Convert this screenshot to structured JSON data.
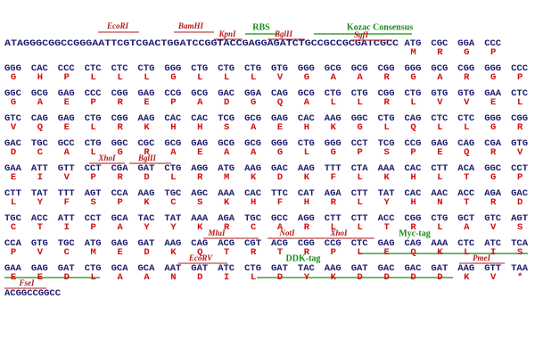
{
  "sequence_map": {
    "intro": {
      "sequence": "ATAGGGCGGCCGGGAATTCGTCGACTGGATCCGGTACCGAGGAGATCTGCCGCCGCGATCGCC",
      "codons": [
        "ATG",
        "CGC",
        "GGA",
        "CCC"
      ],
      "amino_acids": [
        "M",
        "R",
        "G",
        "P"
      ]
    },
    "rows": [
      {
        "codons": [
          "GGG",
          "CAC",
          "CCC",
          "CTC",
          "CTC",
          "CTG",
          "GGG",
          "CTG",
          "CTG",
          "CTG",
          "GTG",
          "GGG",
          "GCG",
          "GCG",
          "CGG",
          "GGG",
          "GCG",
          "CGG",
          "GGG",
          "CCC"
        ],
        "amino_acids": [
          "G",
          "H",
          "P",
          "L",
          "L",
          "L",
          "G",
          "L",
          "L",
          "L",
          "V",
          "G",
          "A",
          "A",
          "R",
          "G",
          "A",
          "R",
          "G",
          "P"
        ]
      },
      {
        "codons": [
          "GGC",
          "GCG",
          "GAG",
          "CCC",
          "CGG",
          "GAG",
          "CCG",
          "GCG",
          "GAC",
          "GGA",
          "CAG",
          "GCG",
          "CTG",
          "CTG",
          "CGG",
          "CTG",
          "GTG",
          "GTG",
          "GAA",
          "CTC"
        ],
        "amino_acids": [
          "G",
          "A",
          "E",
          "P",
          "R",
          "E",
          "P",
          "A",
          "D",
          "G",
          "Q",
          "A",
          "L",
          "L",
          "R",
          "L",
          "V",
          "V",
          "E",
          "L"
        ]
      },
      {
        "codons": [
          "GTC",
          "CAG",
          "GAG",
          "CTG",
          "CGG",
          "AAG",
          "CAC",
          "CAC",
          "TCG",
          "GCG",
          "GAG",
          "CAC",
          "AAG",
          "GGC",
          "CTG",
          "CAG",
          "CTC",
          "CTC",
          "GGG",
          "CGG"
        ],
        "amino_acids": [
          "V",
          "Q",
          "E",
          "L",
          "R",
          "K",
          "H",
          "H",
          "S",
          "A",
          "E",
          "H",
          "K",
          "G",
          "L",
          "Q",
          "L",
          "L",
          "G",
          "R"
        ]
      },
      {
        "codons": [
          "GAC",
          "TGC",
          "GCC",
          "CTG",
          "GGC",
          "CGC",
          "GCG",
          "GAG",
          "GCG",
          "GCG",
          "GGG",
          "CTG",
          "GGG",
          "CCT",
          "TCG",
          "CCG",
          "GAG",
          "CAG",
          "CGA",
          "GTG"
        ],
        "amino_acids": [
          "D",
          "C",
          "A",
          "L",
          "G",
          "R",
          "A",
          "E",
          "A",
          "A",
          "G",
          "L",
          "G",
          "P",
          "S",
          "P",
          "E",
          "Q",
          "R",
          "V"
        ]
      },
      {
        "codons": [
          "GAA",
          "ATT",
          "GTT",
          "CCT",
          "CGA",
          "GAT",
          "CTG",
          "AGG",
          "ATG",
          "AAG",
          "GAC",
          "AAG",
          "TTT",
          "CTA",
          "AAA",
          "CAC",
          "CTT",
          "ACA",
          "GGC",
          "CCT"
        ],
        "amino_acids": [
          "E",
          "I",
          "V",
          "P",
          "R",
          "D",
          "L",
          "R",
          "M",
          "K",
          "D",
          "K",
          "F",
          "L",
          "K",
          "H",
          "L",
          "T",
          "G",
          "P"
        ]
      },
      {
        "codons": [
          "CTT",
          "TAT",
          "TTT",
          "AGT",
          "CCA",
          "AAG",
          "TGC",
          "AGC",
          "AAA",
          "CAC",
          "TTC",
          "CAT",
          "AGA",
          "CTT",
          "TAT",
          "CAC",
          "AAC",
          "ACC",
          "AGA",
          "GAC"
        ],
        "amino_acids": [
          "L",
          "Y",
          "F",
          "S",
          "P",
          "K",
          "C",
          "S",
          "K",
          "H",
          "F",
          "H",
          "R",
          "L",
          "Y",
          "H",
          "N",
          "T",
          "R",
          "D"
        ]
      },
      {
        "codons": [
          "TGC",
          "ACC",
          "ATT",
          "CCT",
          "GCA",
          "TAC",
          "TAT",
          "AAA",
          "AGA",
          "TGC",
          "GCC",
          "AGG",
          "CTT",
          "CTT",
          "ACC",
          "CGG",
          "CTG",
          "GCT",
          "GTC",
          "AGT"
        ],
        "amino_acids": [
          "C",
          "T",
          "I",
          "P",
          "A",
          "Y",
          "Y",
          "K",
          "R",
          "C",
          "A",
          "R",
          "L",
          "L",
          "T",
          "R",
          "L",
          "A",
          "V",
          "S"
        ]
      },
      {
        "codons": [
          "CCA",
          "GTG",
          "TGC",
          "ATG",
          "GAG",
          "GAT",
          "AAG",
          "CAG",
          "ACG",
          "CGT",
          "ACG",
          "CGG",
          "CCG",
          "CTC",
          "GAG",
          "CAG",
          "AAA",
          "CTC",
          "ATC",
          "TCA"
        ],
        "amino_acids": [
          "P",
          "V",
          "C",
          "M",
          "E",
          "D",
          "K",
          "Q",
          "T",
          "R",
          "T",
          "R",
          "P",
          "L",
          "E",
          "Q",
          "K",
          "L",
          "I",
          "S"
        ]
      },
      {
        "codons": [
          "GAA",
          "GAG",
          "GAT",
          "CTG",
          "GCA",
          "GCA",
          "AAT",
          "GAT",
          "ATC",
          "CTG",
          "GAT",
          "TAC",
          "AAG",
          "GAT",
          "GAC",
          "GAC",
          "GAT",
          "AAG",
          "GTT",
          "TAA"
        ],
        "amino_acids": [
          "E",
          "E",
          "D",
          "L",
          "A",
          "A",
          "N",
          "D",
          "I",
          "L",
          "D",
          "Y",
          "K",
          "D",
          "D",
          "D",
          "D",
          "K",
          "V",
          "*"
        ]
      }
    ],
    "tail": "ACGGCCGGCC",
    "annotations": [
      "EcoRI",
      "BamHI",
      "KpnI",
      "RBS",
      "BglII",
      "Kozac Consensus",
      "SgfI",
      "XhoI",
      "BglII",
      "MluI",
      "NotI",
      "XhoI",
      "Myc-tag",
      "EcoRV",
      "DDK-tag",
      "PmeI",
      "FseI"
    ]
  }
}
